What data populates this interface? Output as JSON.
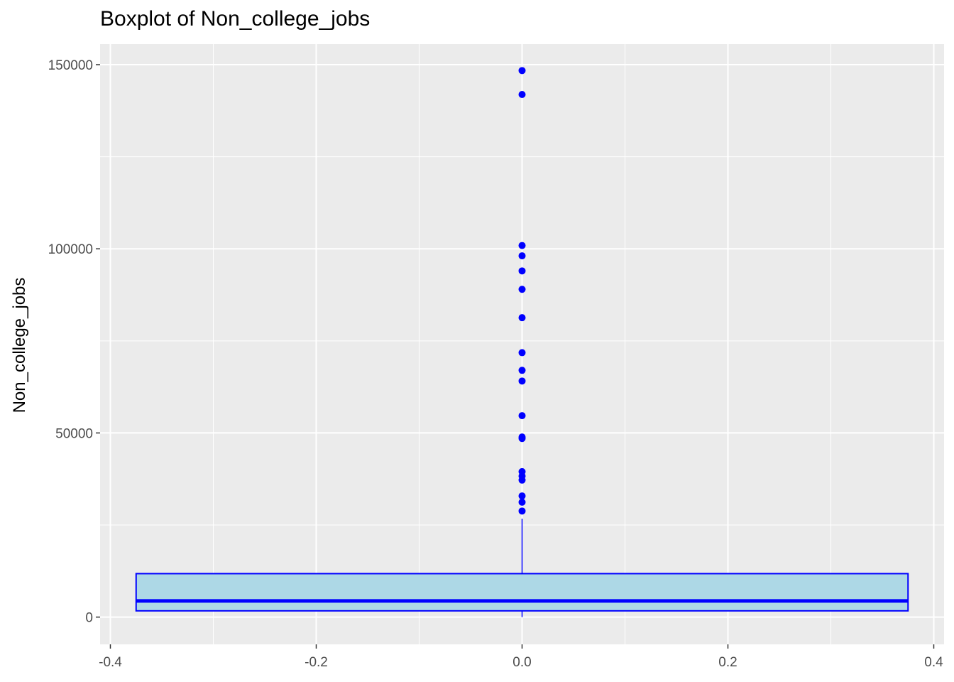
{
  "chart_data": {
    "type": "boxplot",
    "title": "Boxplot of Non_college_jobs",
    "xlabel": "",
    "ylabel": "Non_college_jobs",
    "xlim": [
      -0.41,
      0.41
    ],
    "ylim": [
      -7400,
      155600
    ],
    "x_ticks": [
      -0.4,
      -0.2,
      0.0,
      0.2,
      0.4
    ],
    "x_tick_labels": [
      "-0.4",
      "-0.2",
      "0.0",
      "0.2",
      "0.4"
    ],
    "y_ticks": [
      0,
      50000,
      100000,
      150000
    ],
    "y_tick_labels": [
      "0",
      "50000",
      "100000",
      "150000"
    ],
    "grid": true,
    "box": {
      "x_center": 0.0,
      "x_left": -0.375,
      "x_right": 0.375,
      "q1": 1700,
      "median": 4400,
      "q3": 11800,
      "whisker_low": 0,
      "whisker_high": 26700
    },
    "outliers": [
      148400,
      141900,
      100900,
      98100,
      94000,
      89000,
      81300,
      71800,
      67000,
      64100,
      54700,
      48900,
      48500,
      39500,
      38300,
      37200,
      32900,
      31200,
      28800
    ],
    "colors": {
      "panel_background": "#EBEBEB",
      "grid": "#FFFFFF",
      "box_fill": "#ADD8E6",
      "box_outline": "#0000FF",
      "outlier": "#0000FF",
      "axis_text": "#4D4D4D",
      "tick": "#333333"
    }
  }
}
